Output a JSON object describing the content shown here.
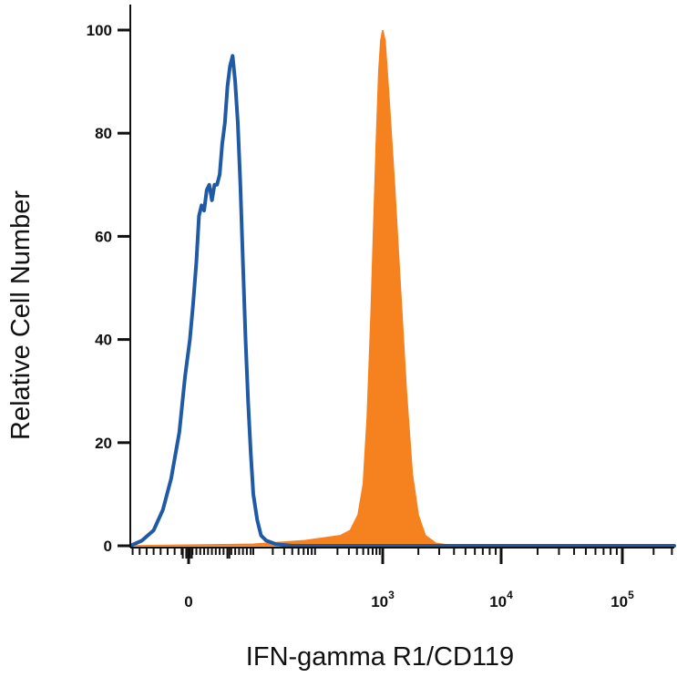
{
  "chart_data": {
    "type": "area",
    "title": "",
    "xlabel": "IFN-gamma R1/CD119",
    "ylabel": "Relative Cell Number",
    "x_scale": "biexponential",
    "ylim": [
      0,
      100
    ],
    "y_ticks": [
      0,
      20,
      40,
      60,
      80,
      100
    ],
    "x_ticks": [
      {
        "base": "0",
        "exp": "",
        "pos": 0
      },
      {
        "base": "10",
        "exp": "3",
        "pos": 3
      },
      {
        "base": "10",
        "exp": "4",
        "pos": 4
      },
      {
        "base": "10",
        "exp": "5",
        "pos": 5
      }
    ],
    "grid": false,
    "legend": "none",
    "series": [
      {
        "style": "filled",
        "color": "#F5821F",
        "points": [
          [
            -0.5,
            0
          ],
          [
            1.0,
            0.3
          ],
          [
            1.8,
            1
          ],
          [
            2.35,
            2
          ],
          [
            2.5,
            3
          ],
          [
            2.62,
            6
          ],
          [
            2.7,
            12
          ],
          [
            2.76,
            25
          ],
          [
            2.82,
            45
          ],
          [
            2.86,
            62
          ],
          [
            2.9,
            78
          ],
          [
            2.94,
            92
          ],
          [
            2.97,
            98
          ],
          [
            3.0,
            100
          ],
          [
            3.02,
            98
          ],
          [
            3.05,
            88
          ],
          [
            3.1,
            70
          ],
          [
            3.15,
            50
          ],
          [
            3.2,
            30
          ],
          [
            3.25,
            14
          ],
          [
            3.3,
            6
          ],
          [
            3.36,
            2
          ],
          [
            3.45,
            0.5
          ],
          [
            3.6,
            0
          ],
          [
            5.5,
            0
          ]
        ]
      },
      {
        "style": "line",
        "color": "#1F5AA6",
        "points": [
          [
            -0.5,
            0
          ],
          [
            -0.4,
            1
          ],
          [
            -0.3,
            3
          ],
          [
            -0.22,
            7
          ],
          [
            -0.15,
            13
          ],
          [
            -0.08,
            22
          ],
          [
            -0.03,
            33
          ],
          [
            0.02,
            40
          ],
          [
            0.07,
            47
          ],
          [
            0.12,
            55
          ],
          [
            0.16,
            64
          ],
          [
            0.2,
            66
          ],
          [
            0.24,
            65
          ],
          [
            0.28,
            69
          ],
          [
            0.32,
            70
          ],
          [
            0.36,
            67
          ],
          [
            0.4,
            70
          ],
          [
            0.44,
            70
          ],
          [
            0.48,
            72
          ],
          [
            0.52,
            78
          ],
          [
            0.56,
            82
          ],
          [
            0.6,
            89
          ],
          [
            0.64,
            93
          ],
          [
            0.68,
            95
          ],
          [
            0.72,
            90
          ],
          [
            0.76,
            82
          ],
          [
            0.8,
            70
          ],
          [
            0.84,
            55
          ],
          [
            0.88,
            40
          ],
          [
            0.92,
            28
          ],
          [
            0.96,
            18
          ],
          [
            1.0,
            10
          ],
          [
            1.06,
            5
          ],
          [
            1.12,
            2
          ],
          [
            1.2,
            1
          ],
          [
            1.35,
            0.3
          ],
          [
            1.6,
            0
          ],
          [
            5.5,
            0
          ]
        ]
      }
    ]
  }
}
